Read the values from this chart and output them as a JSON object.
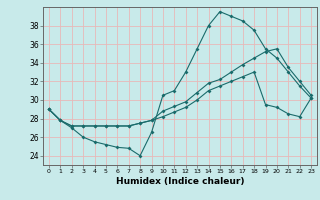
{
  "title": "",
  "xlabel": "Humidex (Indice chaleur)",
  "background_color": "#c8eaea",
  "grid_color": "#e8b8b8",
  "line_color": "#1a6b6b",
  "xlim": [
    -0.5,
    23.5
  ],
  "ylim": [
    23.0,
    40.0
  ],
  "yticks": [
    24,
    26,
    28,
    30,
    32,
    34,
    36,
    38
  ],
  "xticks": [
    0,
    1,
    2,
    3,
    4,
    5,
    6,
    7,
    8,
    9,
    10,
    11,
    12,
    13,
    14,
    15,
    16,
    17,
    18,
    19,
    20,
    21,
    22,
    23
  ],
  "series1_x": [
    0,
    1,
    2,
    3,
    4,
    5,
    6,
    7,
    8,
    9,
    10,
    11,
    12,
    13,
    14,
    15,
    16,
    17,
    18,
    19,
    20,
    21,
    22,
    23
  ],
  "series1_y": [
    29.0,
    27.8,
    27.0,
    26.0,
    25.5,
    25.2,
    24.9,
    24.8,
    24.0,
    26.5,
    30.5,
    31.0,
    33.0,
    35.5,
    38.0,
    39.5,
    39.0,
    38.5,
    37.5,
    35.5,
    34.5,
    33.0,
    31.5,
    30.2
  ],
  "series2_x": [
    0,
    1,
    2,
    3,
    4,
    5,
    6,
    7,
    8,
    9,
    10,
    11,
    12,
    13,
    14,
    15,
    16,
    17,
    18,
    19,
    20,
    21,
    22,
    23
  ],
  "series2_y": [
    29.0,
    27.8,
    27.2,
    27.2,
    27.2,
    27.2,
    27.2,
    27.2,
    27.5,
    27.8,
    28.8,
    29.3,
    29.8,
    30.8,
    31.8,
    32.2,
    33.0,
    33.8,
    34.5,
    35.2,
    35.5,
    33.5,
    32.0,
    30.5
  ],
  "series3_x": [
    0,
    1,
    2,
    3,
    4,
    5,
    6,
    7,
    8,
    9,
    10,
    11,
    12,
    13,
    14,
    15,
    16,
    17,
    18,
    19,
    20,
    21,
    22,
    23
  ],
  "series3_y": [
    29.0,
    27.8,
    27.2,
    27.2,
    27.2,
    27.2,
    27.2,
    27.2,
    27.5,
    27.8,
    28.2,
    28.7,
    29.2,
    30.0,
    31.0,
    31.5,
    32.0,
    32.5,
    33.0,
    29.5,
    29.2,
    28.5,
    28.2,
    30.2
  ]
}
